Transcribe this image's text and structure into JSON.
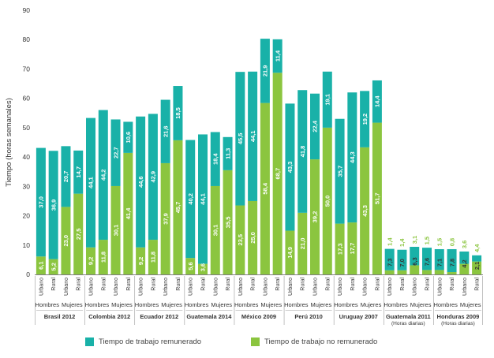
{
  "chart_data": {
    "type": "bar",
    "stacked": true,
    "ylabel": "Tiempo (horas semanales)",
    "ylim": [
      0,
      90
    ],
    "yticks": [
      0,
      10,
      20,
      30,
      40,
      50,
      60,
      70,
      80,
      90
    ],
    "grid": false,
    "legend_position": "bottom",
    "colors": {
      "remunerado": "#19B1A8",
      "no_remunerado": "#8BC53F",
      "text_dark": "#333333",
      "label_light": "#ffffff"
    },
    "series": [
      {
        "name": "Tiempo de trabajo no remunerado",
        "key": "no_remunerado"
      },
      {
        "name": "Tiempo de trabajo remunerado",
        "key": "remunerado"
      }
    ],
    "groups": [
      {
        "label": "Brasil 2012",
        "sexes": [
          {
            "label": "Hombres",
            "bars": [
              {
                "area": "Urbano",
                "no_remunerado": 6.1,
                "remunerado": 37.0,
                "labels": [
                  "6,1",
                  "37,0"
                ]
              },
              {
                "area": "Rural",
                "no_remunerado": 5.2,
                "remunerado": 36.9,
                "labels": [
                  "5,2",
                  "36,9"
                ]
              }
            ]
          },
          {
            "label": "Mujeres",
            "bars": [
              {
                "area": "Urbano",
                "no_remunerado": 23.0,
                "remunerado": 20.7,
                "labels": [
                  "23,0",
                  "20,7"
                ]
              },
              {
                "area": "Rural",
                "no_remunerado": 27.5,
                "remunerado": 14.7,
                "labels": [
                  "27,5",
                  "14,7"
                ]
              }
            ]
          }
        ]
      },
      {
        "label": "Colombia 2012",
        "sexes": [
          {
            "label": "Hombres",
            "bars": [
              {
                "area": "Urbano",
                "no_remunerado": 9.2,
                "remunerado": 44.1,
                "labels": [
                  "9,2",
                  "44,1"
                ]
              },
              {
                "area": "Rural",
                "no_remunerado": 11.8,
                "remunerado": 44.2,
                "labels": [
                  "11,8",
                  "44,2"
                ]
              }
            ]
          },
          {
            "label": "Mujeres",
            "bars": [
              {
                "area": "Urbano",
                "no_remunerado": 30.1,
                "remunerado": 22.7,
                "labels": [
                  "30,1",
                  "22,7"
                ]
              },
              {
                "area": "Rural",
                "no_remunerado": 41.4,
                "remunerado": 10.6,
                "labels": [
                  "41,4",
                  "10,6"
                ]
              }
            ]
          }
        ]
      },
      {
        "label": "Ecuador 2012",
        "sexes": [
          {
            "label": "Hombres",
            "bars": [
              {
                "area": "Urbano",
                "no_remunerado": 9.2,
                "remunerado": 44.6,
                "labels": [
                  "9,2",
                  "44,6"
                ]
              },
              {
                "area": "Rural",
                "no_remunerado": 11.8,
                "remunerado": 42.9,
                "labels": [
                  "11,8",
                  "42,9"
                ]
              }
            ]
          },
          {
            "label": "Mujeres",
            "bars": [
              {
                "area": "Urbano",
                "no_remunerado": 37.9,
                "remunerado": 21.6,
                "labels": [
                  "37,9",
                  "21,6"
                ]
              },
              {
                "area": "Rural",
                "no_remunerado": 45.7,
                "remunerado": 18.5,
                "labels": [
                  "45,7",
                  "18,5"
                ]
              }
            ]
          }
        ]
      },
      {
        "label": "Guatemala 2014",
        "sexes": [
          {
            "label": "Hombres",
            "bars": [
              {
                "area": "Urbano",
                "no_remunerado": 5.6,
                "remunerado": 40.2,
                "labels": [
                  "5,6",
                  "40,2"
                ]
              },
              {
                "area": "Rural",
                "no_remunerado": 3.6,
                "remunerado": 44.1,
                "labels": [
                  "3,6",
                  "44,1"
                ]
              }
            ]
          },
          {
            "label": "Mujeres",
            "bars": [
              {
                "area": "Urbano",
                "no_remunerado": 30.1,
                "remunerado": 18.4,
                "labels": [
                  "30,1",
                  "18,4"
                ]
              },
              {
                "area": "Rural",
                "no_remunerado": 35.5,
                "remunerado": 11.3,
                "labels": [
                  "35,5",
                  "11,3"
                ]
              }
            ]
          }
        ]
      },
      {
        "label": "México 2009",
        "sexes": [
          {
            "label": "Hombres",
            "bars": [
              {
                "area": "Urbano",
                "no_remunerado": 23.5,
                "remunerado": 45.5,
                "labels": [
                  "23,5",
                  "45,5"
                ]
              },
              {
                "area": "Rural",
                "no_remunerado": 25.0,
                "remunerado": 44.1,
                "labels": [
                  "25,0",
                  "44,1"
                ]
              }
            ]
          },
          {
            "label": "Mujeres",
            "bars": [
              {
                "area": "Urbano",
                "no_remunerado": 58.4,
                "remunerado": 21.9,
                "labels": [
                  "58,4",
                  "21,9"
                ]
              },
              {
                "area": "Rural",
                "no_remunerado": 68.7,
                "remunerado": 11.4,
                "labels": [
                  "68,7",
                  "11,4"
                ]
              }
            ]
          }
        ]
      },
      {
        "label": "Perú 2010",
        "sexes": [
          {
            "label": "Hombres",
            "bars": [
              {
                "area": "Urbano",
                "no_remunerado": 14.9,
                "remunerado": 43.3,
                "labels": [
                  "14,9",
                  "43,3"
                ]
              },
              {
                "area": "Rural",
                "no_remunerado": 21.0,
                "remunerado": 41.8,
                "labels": [
                  "21,0",
                  "41,8"
                ]
              }
            ]
          },
          {
            "label": "Mujeres",
            "bars": [
              {
                "area": "Urbano",
                "no_remunerado": 39.2,
                "remunerado": 22.4,
                "labels": [
                  "39,2",
                  "22,4"
                ]
              },
              {
                "area": "Rural",
                "no_remunerado": 50.0,
                "remunerado": 19.1,
                "labels": [
                  "50,0",
                  "19,1"
                ]
              }
            ]
          }
        ]
      },
      {
        "label": "Uruguay 2007",
        "sexes": [
          {
            "label": "Hombres",
            "bars": [
              {
                "area": "Urbano",
                "no_remunerado": 17.3,
                "remunerado": 35.7,
                "labels": [
                  "17,3",
                  "35,7"
                ]
              },
              {
                "area": "Rural",
                "no_remunerado": 17.7,
                "remunerado": 44.3,
                "labels": [
                  "17,7",
                  "44,3"
                ]
              }
            ]
          },
          {
            "label": "Mujeres",
            "bars": [
              {
                "area": "Urbano",
                "no_remunerado": 43.3,
                "remunerado": 19.2,
                "labels": [
                  "43,3",
                  "19,2"
                ]
              },
              {
                "area": "Rural",
                "no_remunerado": 51.7,
                "remunerado": 14.4,
                "labels": [
                  "51,7",
                  "14,4"
                ]
              }
            ]
          }
        ]
      },
      {
        "label": "Guatemala 2011",
        "sublabel": "(Horas diarias)",
        "sexes": [
          {
            "label": "Hombres",
            "bars": [
              {
                "area": "Urbano",
                "no_remunerado": 1.4,
                "remunerado": 7.3,
                "labels": [
                  "1,4",
                  "7,3"
                ]
              },
              {
                "area": "Rural",
                "no_remunerado": 1.4,
                "remunerado": 7.0,
                "labels": [
                  "1,4",
                  "7,0"
                ]
              }
            ]
          },
          {
            "label": "Mujeres",
            "bars": [
              {
                "area": "Urbano",
                "no_remunerado": 3.1,
                "remunerado": 6.3,
                "labels": [
                  "3,1",
                  "6,3"
                ]
              },
              {
                "area": "Rural",
                "no_remunerado": 1.5,
                "remunerado": 7.6,
                "labels": [
                  "1,5",
                  "7,6"
                ]
              }
            ]
          }
        ]
      },
      {
        "label": "Honduras 2009",
        "sublabel": "(Horas diarias)",
        "sexes": [
          {
            "label": "Hombres",
            "bars": [
              {
                "area": "Urbano",
                "no_remunerado": 1.5,
                "remunerado": 7.1,
                "labels": [
                  "1,5",
                  "7,1"
                ]
              },
              {
                "area": "Rural",
                "no_remunerado": 0.8,
                "remunerado": 7.8,
                "labels": [
                  "0,8",
                  "7,8"
                ]
              }
            ]
          },
          {
            "label": "Mujeres",
            "bars": [
              {
                "area": "Urbano",
                "no_remunerado": 3.6,
                "remunerado": 4.2,
                "labels": [
                  "3,6",
                  "4,2"
                ]
              },
              {
                "area": "Rural",
                "no_remunerado": 4.4,
                "remunerado": 2.1,
                "labels": [
                  "4,4",
                  "2,1"
                ]
              }
            ]
          }
        ]
      }
    ]
  },
  "legend": {
    "remunerado": "Tiempo de trabajo remunerado",
    "no_remunerado": "Tiempo de trabajo no remunerado"
  }
}
